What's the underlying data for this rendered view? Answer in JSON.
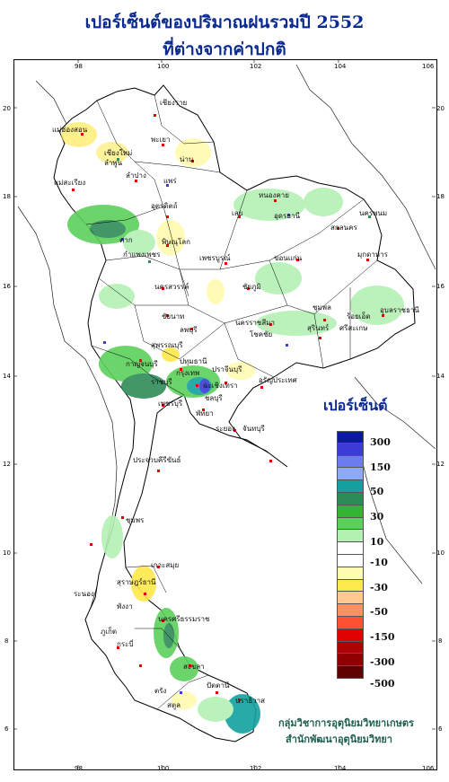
{
  "title": {
    "line1": "เปอร์เซ็นต์ของปริมาณฝนรวมปี  2552",
    "line2": "ที่ต่างจากค่าปกติ"
  },
  "axes": {
    "lon_ticks": [
      "98",
      "100",
      "102",
      "104",
      "106"
    ],
    "lat_ticks": [
      "20",
      "18",
      "16",
      "14",
      "12",
      "10",
      "8",
      "6"
    ]
  },
  "legend": {
    "title": "เปอร์เซ็นต์",
    "colors": [
      "#0a1aa0",
      "#3b3bd8",
      "#6b7cf0",
      "#8fa8f8",
      "#14a0a0",
      "#2e8b57",
      "#34b234",
      "#5cd05c",
      "#b4f0b4",
      "#ffffff",
      "#ffffff",
      "#fffbb0",
      "#ffe84a",
      "#ffc88c",
      "#ff9060",
      "#ff5030",
      "#e00000",
      "#b00000",
      "#900000",
      "#600000"
    ],
    "labels": [
      "300",
      "150",
      "50",
      "30",
      "10",
      "-10",
      "-30",
      "-50",
      "-150",
      "-300",
      "-500"
    ]
  },
  "credit": {
    "line1": "กลุ่มวิชาการอุตุนิยมวิทยาเกษตร",
    "line2": "สำนักพัฒนาอุตุนิยมวิทยา"
  },
  "places": [
    "เชียงราย",
    "แม่ฮ่องสอน",
    "เชียงใหม่",
    "ลำพูน",
    "พะเยา",
    "น่าน",
    "ลำปาง",
    "แพร่",
    "แม่สะเรียง",
    "อุตรดิตถ์",
    "หนองคาย",
    "เลย",
    "อุดรธานี",
    "สกลนคร",
    "นครพนม",
    "ตาก",
    "พิษณุโลก",
    "กำแพงเพชร",
    "เพชรบูรณ์",
    "ขอนแก่น",
    "มุกดาหาร",
    "นครสวรรค์",
    "ชัยภูมิ",
    "ชัยนาท",
    "ลพบุรี",
    "นครราชสีมา",
    "โชคชัย",
    "ชุมพล",
    "ร้อยเอ็ด",
    "อุบลราชธานี",
    "สุรินทร์",
    "ศรีสะเกษ",
    "สุพรรณบุรี",
    "กาญจนบุรี",
    "ปทุมธานี",
    "กรุงเทพ",
    "ราชบุรี",
    "ปราจีนบุรี",
    "อรัญประเทศ",
    "ฉะเชิงเทรา",
    "เพชรบุรี",
    "ชลบุรี",
    "พัทยา",
    "ระยอง",
    "จันทบุรี",
    "ประจวบคีรีขันธ์",
    "ชุมพร",
    "เกาะสมุย",
    "ระนอง",
    "สุราษฎร์ธานี",
    "นครศรีธรรมราช",
    "พังงา",
    "ภูเก็ต",
    "กระบี่",
    "ตรัง",
    "สงขลา",
    "ปัตตานี",
    "นราธิวาส",
    "สตูล"
  ]
}
